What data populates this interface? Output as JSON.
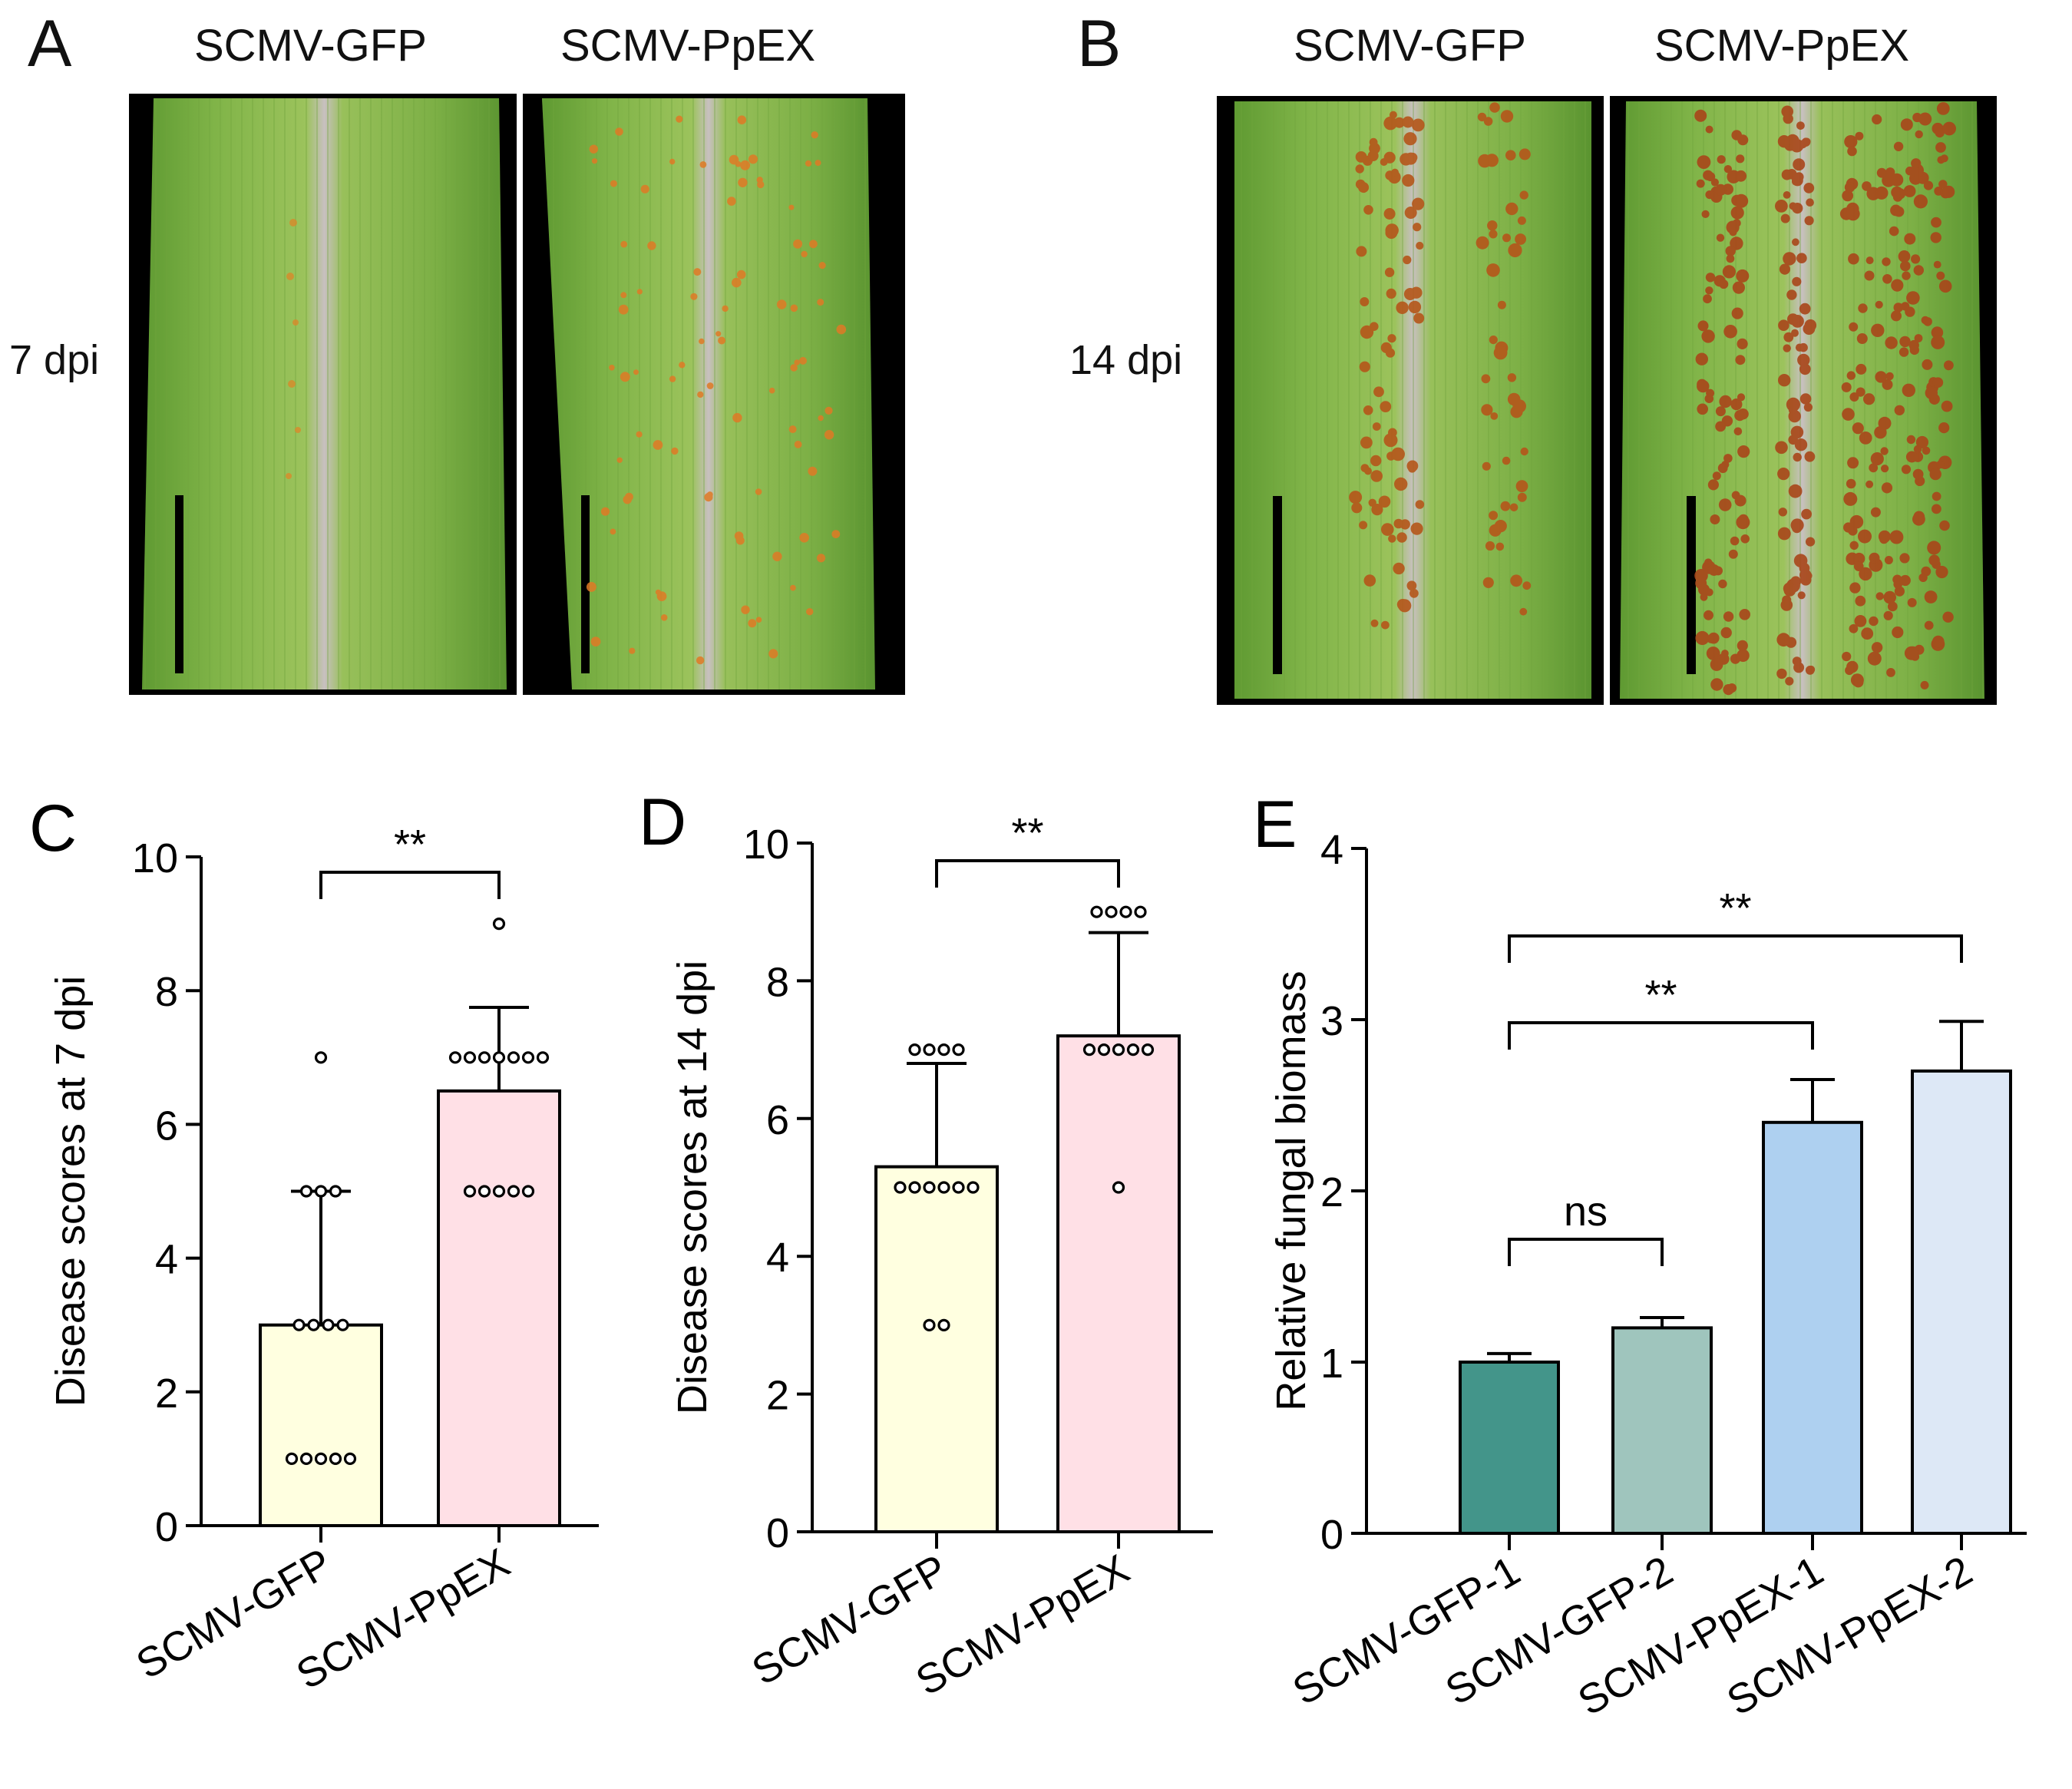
{
  "panels": {
    "A": {
      "letter": "A",
      "cols": [
        "SCMV-GFP",
        "SCMV-PpEX"
      ],
      "row_label": "7 dpi"
    },
    "B": {
      "letter": "B",
      "cols": [
        "SCMV-GFP",
        "SCMV-PpEX"
      ],
      "row_label": "14 dpi"
    }
  },
  "chart_data": [
    {
      "panel": "C",
      "type": "bar",
      "categories": [
        "SCMV-GFP",
        "SCMV-PpEX"
      ],
      "values": [
        3.0,
        6.5
      ],
      "errors": [
        2.0,
        1.25
      ],
      "colors": [
        "#ffffe0",
        "#ffe0e6"
      ],
      "points": [
        [
          1,
          1,
          1,
          1,
          1,
          3,
          3,
          3,
          3,
          5,
          5,
          5,
          7
        ],
        [
          5,
          5,
          5,
          5,
          5,
          7,
          7,
          7,
          7,
          7,
          7,
          7,
          9
        ]
      ],
      "ylabel": "Disease scores at 7 dpi",
      "ylim": [
        0,
        10
      ],
      "yticks": [
        0,
        2,
        4,
        6,
        8,
        10
      ],
      "significance": [
        {
          "from": 0,
          "to": 1,
          "label": "**"
        }
      ]
    },
    {
      "panel": "D",
      "type": "bar",
      "categories": [
        "SCMV-GFP",
        "SCMV-PpEX"
      ],
      "values": [
        5.3,
        7.2
      ],
      "errors": [
        1.5,
        1.5
      ],
      "colors": [
        "#ffffe0",
        "#ffe0e6"
      ],
      "points": [
        [
          3,
          3,
          5,
          5,
          5,
          5,
          5,
          5,
          7,
          7,
          7,
          7
        ],
        [
          5,
          7,
          7,
          7,
          7,
          7,
          9,
          9,
          9,
          9
        ]
      ],
      "ylabel": "Disease scores at 14 dpi",
      "ylim": [
        0,
        10
      ],
      "yticks": [
        0,
        2,
        4,
        6,
        8,
        10
      ],
      "significance": [
        {
          "from": 0,
          "to": 1,
          "label": "**"
        }
      ]
    },
    {
      "panel": "E",
      "type": "bar",
      "categories": [
        "SCMV-GFP-1",
        "SCMV-GFP-2",
        "SCMV-PpEX-1",
        "SCMV-PpEX-2"
      ],
      "values": [
        1.0,
        1.2,
        2.4,
        2.7
      ],
      "errors": [
        0.05,
        0.06,
        0.25,
        0.29
      ],
      "colors": [
        "#43958a",
        "#9fc5bd",
        "#aed0f0",
        "#dde8f6"
      ],
      "ylabel": "Relative fungal biomass",
      "ylim": [
        0,
        4
      ],
      "yticks": [
        0,
        1,
        2,
        3,
        4
      ],
      "significance": [
        {
          "from": 0,
          "to": 1,
          "label": "ns"
        },
        {
          "from": 0,
          "to": 2,
          "label": "**"
        },
        {
          "from": 0,
          "to": 3,
          "label": "**"
        }
      ]
    }
  ]
}
